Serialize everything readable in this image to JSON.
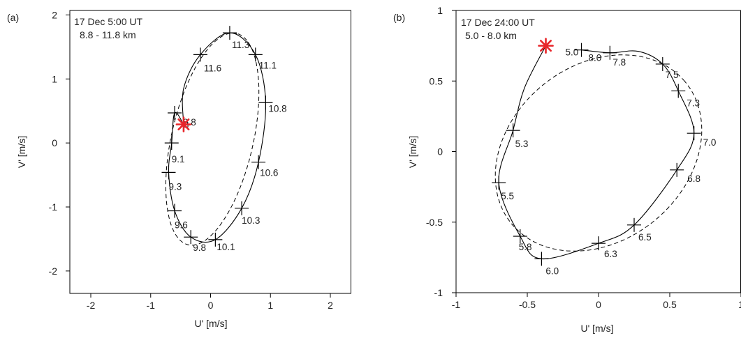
{
  "chart_data": [
    {
      "type": "line",
      "panel_label": "(a)",
      "annotation_line1": "17 Dec 5:00 UT",
      "annotation_line2": "8.8 - 11.8 km",
      "xlabel": "U' [m/s]",
      "ylabel": "V' [m/s]",
      "xlim": [
        -2.35,
        2.35
      ],
      "ylim": [
        -2.35,
        2.07
      ],
      "xticks": [
        -2,
        -1,
        0,
        1,
        2
      ],
      "xtick_labels": [
        "-2",
        "-1",
        "0",
        "1",
        "2"
      ],
      "yticks": [
        -2,
        -1,
        0,
        1,
        2
      ],
      "ytick_labels": [
        "-2",
        "-1",
        "0",
        "1",
        "2"
      ],
      "grid": false,
      "start_marker": {
        "x": -0.45,
        "y": 0.29,
        "color": "#e8262a"
      },
      "points": [
        {
          "label": "8.8",
          "x": -0.6,
          "y": 0.47
        },
        {
          "label": "9.1",
          "x": -0.65,
          "y": 0.0
        },
        {
          "label": "9.3",
          "x": -0.7,
          "y": -0.46
        },
        {
          "label": "9.6",
          "x": -0.6,
          "y": -1.06
        },
        {
          "label": "9.8",
          "x": -0.33,
          "y": -1.47
        },
        {
          "label": "10.1",
          "x": 0.08,
          "y": -1.51
        },
        {
          "label": "10.3",
          "x": 0.52,
          "y": -1.02
        },
        {
          "label": "10.6",
          "x": 0.8,
          "y": -0.3
        },
        {
          "label": "10.8",
          "x": 0.92,
          "y": 0.63
        },
        {
          "label": "11.1",
          "x": 0.75,
          "y": 1.38
        },
        {
          "label": "11.3",
          "x": 0.32,
          "y": 1.72
        },
        {
          "label": "11.6",
          "x": -0.17,
          "y": 1.38
        },
        {
          "label": "8",
          "x": -0.45,
          "y": 0.29
        }
      ],
      "observed_curve": [
        [
          -0.45,
          0.29
        ],
        [
          -0.6,
          0.47
        ],
        [
          -0.65,
          0.0
        ],
        [
          -0.7,
          -0.46
        ],
        [
          -0.6,
          -1.06
        ],
        [
          -0.33,
          -1.47
        ],
        [
          0.08,
          -1.51
        ],
        [
          0.52,
          -1.02
        ],
        [
          0.8,
          -0.3
        ],
        [
          0.92,
          0.63
        ],
        [
          0.75,
          1.38
        ],
        [
          0.32,
          1.72
        ],
        [
          -0.17,
          1.38
        ],
        [
          -0.45,
          0.85
        ],
        [
          -0.45,
          0.29
        ]
      ],
      "fitted_ellipse": {
        "center": [
          0.03,
          0.06
        ],
        "semi_major": 1.7,
        "semi_minor": 0.68,
        "angle_deg": 76
      }
    },
    {
      "type": "line",
      "panel_label": "(b)",
      "annotation_line1": "17 Dec 24:00 UT",
      "annotation_line2": "5.0 - 8.0 km",
      "xlabel": "U' [m/s]",
      "ylabel": "V' [m/s]",
      "xlim": [
        -1.0,
        1.0
      ],
      "ylim": [
        -1.0,
        1.0
      ],
      "xticks": [
        -1,
        -0.5,
        0,
        0.5,
        1
      ],
      "xtick_labels": [
        "-1",
        "-0.5",
        "0",
        "0.5",
        "1"
      ],
      "yticks": [
        -1,
        -0.5,
        0,
        0.5,
        1
      ],
      "ytick_labels": [
        "-1",
        "-0.5",
        "0",
        "0.5",
        "1"
      ],
      "grid": false,
      "start_marker": {
        "x": -0.37,
        "y": 0.75,
        "color": "#e8262a"
      },
      "points": [
        {
          "label": "5.0",
          "x": -0.37,
          "y": 0.75
        },
        {
          "label": "5.3",
          "x": -0.6,
          "y": 0.15
        },
        {
          "label": "5.5",
          "x": -0.7,
          "y": -0.22
        },
        {
          "label": "5.8",
          "x": -0.55,
          "y": -0.6
        },
        {
          "label": "6.0",
          "x": -0.4,
          "y": -0.76
        },
        {
          "label": "6.3",
          "x": 0.0,
          "y": -0.65
        },
        {
          "label": "6.5",
          "x": 0.25,
          "y": -0.52
        },
        {
          "label": "6.8",
          "x": 0.55,
          "y": -0.13
        },
        {
          "label": "7.0",
          "x": 0.67,
          "y": 0.13
        },
        {
          "label": "7.3",
          "x": 0.56,
          "y": 0.43
        },
        {
          "label": "7.5",
          "x": 0.45,
          "y": 0.62
        },
        {
          "label": "7.8",
          "x": 0.08,
          "y": 0.7
        },
        {
          "label": "8.0",
          "x": -0.12,
          "y": 0.72
        }
      ],
      "observed_curve": [
        [
          -0.37,
          0.75
        ],
        [
          -0.52,
          0.45
        ],
        [
          -0.6,
          0.15
        ],
        [
          -0.7,
          -0.22
        ],
        [
          -0.55,
          -0.6
        ],
        [
          -0.4,
          -0.76
        ],
        [
          0.0,
          -0.65
        ],
        [
          0.25,
          -0.52
        ],
        [
          0.55,
          -0.13
        ],
        [
          0.67,
          0.13
        ],
        [
          0.56,
          0.43
        ],
        [
          0.45,
          0.62
        ],
        [
          0.28,
          0.71
        ],
        [
          0.08,
          0.7
        ],
        [
          -0.12,
          0.72
        ]
      ],
      "fitted_ellipse": {
        "center": [
          0.0,
          -0.01
        ],
        "semi_major": 0.79,
        "semi_minor": 0.62,
        "angle_deg": 40
      }
    }
  ]
}
